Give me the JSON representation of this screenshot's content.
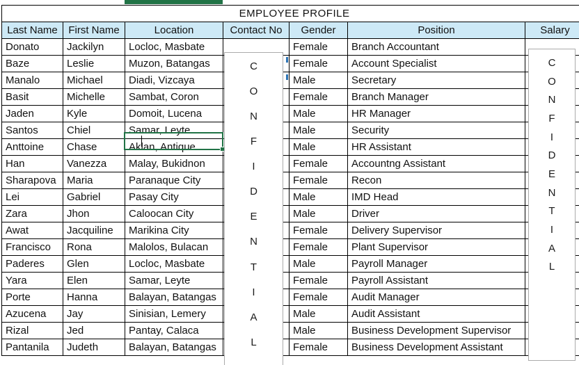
{
  "title": "EMPLOYEE PROFILE",
  "columns": [
    "Last Name",
    "First Name",
    "Location",
    "Contact No",
    "Gender",
    "Position",
    "Salary"
  ],
  "confidential_label": "CONFIDENTIAL",
  "rows": [
    {
      "last_name": "Donato",
      "first_name": "Jackilyn",
      "location": "Locloc, Masbate",
      "gender": "Female",
      "position": "Branch Accountant"
    },
    {
      "last_name": "Baze",
      "first_name": "Leslie",
      "location": "Muzon, Batangas",
      "gender": "Female",
      "position": "Account Specialist"
    },
    {
      "last_name": "Manalo",
      "first_name": "Michael",
      "location": "Diadi, Vizcaya",
      "gender": "Male",
      "position": "Secretary"
    },
    {
      "last_name": "Basit",
      "first_name": "Michelle",
      "location": "Sambat, Coron",
      "gender": "Female",
      "position": "Branch Manager"
    },
    {
      "last_name": "Jaden",
      "first_name": "Kyle",
      "location": "Domoit, Lucena",
      "gender": "Male",
      "position": "HR Manager"
    },
    {
      "last_name": "Santos",
      "first_name": "Chiel",
      "location": "Samar, Leyte",
      "gender": "Male",
      "position": "Security"
    },
    {
      "last_name": "Anttoine",
      "first_name": "Chase",
      "location": "Aklan, Antique",
      "gender": "Male",
      "position": "HR Assistant"
    },
    {
      "last_name": "Han",
      "first_name": "Vanezza",
      "location": "Malay, Bukidnon",
      "gender": "Female",
      "position": "Accountng Assistant"
    },
    {
      "last_name": "Sharapova",
      "first_name": "Maria",
      "location": "Paranaque City",
      "gender": "Female",
      "position": "Recon"
    },
    {
      "last_name": "Lei",
      "first_name": "Gabriel",
      "location": "Pasay City",
      "gender": "Male",
      "position": "IMD Head"
    },
    {
      "last_name": "Zara",
      "first_name": "Jhon",
      "location": "Caloocan City",
      "gender": "Male",
      "position": "Driver"
    },
    {
      "last_name": "Awat",
      "first_name": "Jacquiline",
      "location": "Marikina City",
      "gender": "Female",
      "position": "Delivery Supervisor"
    },
    {
      "last_name": "Francisco",
      "first_name": "Rona",
      "location": "Malolos, Bulacan",
      "gender": "Female",
      "position": "Plant Supervisor"
    },
    {
      "last_name": "Paderes",
      "first_name": "Glen",
      "location": "Locloc, Masbate",
      "gender": "Male",
      "position": "Payroll Manager"
    },
    {
      "last_name": "Yara",
      "first_name": "Elen",
      "location": "Samar, Leyte",
      "gender": "Female",
      "position": "Payroll Assistant"
    },
    {
      "last_name": "Porte",
      "first_name": "Hanna",
      "location": "Balayan, Batangas",
      "gender": "Female",
      "position": "Audit Manager"
    },
    {
      "last_name": "Azucena",
      "first_name": "Jay",
      "location": "Sinisian, Lemery",
      "gender": "Male",
      "position": "Audit Assistant"
    },
    {
      "last_name": "Rizal",
      "first_name": "Jed",
      "location": "Pantay, Calaca",
      "gender": "Male",
      "position": "Business Development Supervisor"
    },
    {
      "last_name": "Pantanila",
      "first_name": "Judeth",
      "location": "Balayan, Batangas",
      "gender": "Female",
      "position": "Business Development Assistant"
    }
  ],
  "selection": {
    "editing_cell_text": "Samar, Leyte",
    "text_before_caret": "Sa",
    "row_index": 5,
    "column": "location"
  },
  "colors": {
    "title_bg": "#C4E5B0",
    "header_bg": "#CDE9F6",
    "selection_green": "#217346",
    "overlay_border": "#ABABAB",
    "hidden_text_blue": "#2E75B6",
    "grid_border": "#000000"
  }
}
